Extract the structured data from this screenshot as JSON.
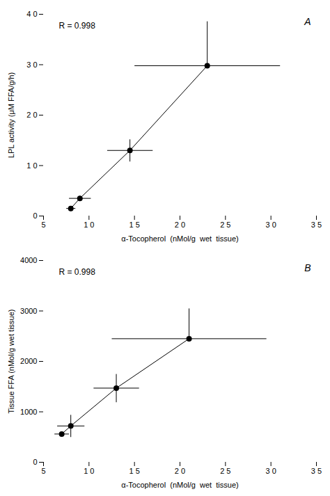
{
  "chart_data": [
    {
      "type": "line",
      "marker": "circle",
      "color": "#000000",
      "annotations": [
        "R = 0.998",
        "A"
      ],
      "x_label": "α-Tocopherol  (nMol/g  wet  tissue)",
      "y_label": "LPL activity (μM FFA/g/h)",
      "x": [
        8.0,
        9.0,
        14.5,
        23.0
      ],
      "values": [
        0.15,
        0.35,
        1.3,
        2.98
      ],
      "xerr": [
        0.5,
        1.2,
        2.5,
        8.0
      ],
      "yerr_lo": [
        0.05,
        0.05,
        0.22,
        0.0
      ],
      "yerr_hi": [
        0.05,
        0.05,
        0.22,
        0.88
      ],
      "xlim": [
        5,
        35
      ],
      "ylim": [
        0,
        4.0
      ],
      "xticks": [
        5,
        {
          "value": 10,
          "label": "1 0"
        },
        {
          "value": 15,
          "label": "1 5"
        },
        {
          "value": 20,
          "label": "2 0"
        },
        {
          "value": 25,
          "label": "2 5"
        },
        {
          "value": 30,
          "label": "3 0"
        },
        {
          "value": 35,
          "label": "3 5"
        }
      ],
      "yticks": [
        0,
        {
          "value": 1.0,
          "label": "1 0"
        },
        {
          "value": 2.0,
          "label": "2 0"
        },
        {
          "value": 3.0,
          "label": "3 0"
        },
        {
          "value": 4.0,
          "label": "4 0"
        }
      ]
    },
    {
      "type": "line",
      "marker": "circle",
      "color": "#000000",
      "annotations": [
        "R = 0.998",
        "B"
      ],
      "x_label": "α-Tocopherol  (nMol/g  wet  tissue)",
      "y_label": "Tissue FFA (nMol/g wet tissue)",
      "x": [
        7.0,
        8.0,
        13.0,
        21.0
      ],
      "values": [
        560,
        720,
        1470,
        2450
      ],
      "xerr": [
        0.8,
        1.5,
        2.5,
        8.5
      ],
      "yerr_lo": [
        0.0,
        220.0,
        280.0,
        0.0
      ],
      "yerr_hi": [
        0.0,
        220.0,
        280.0,
        600.0
      ],
      "xlim": [
        5,
        35
      ],
      "ylim": [
        0,
        4000
      ],
      "xticks": [
        5,
        {
          "value": 10,
          "label": "1 0"
        },
        {
          "value": 15,
          "label": "1 5"
        },
        {
          "value": 20,
          "label": "2 0"
        },
        {
          "value": 25,
          "label": "2 5"
        },
        {
          "value": 30,
          "label": "3 0"
        },
        {
          "value": 35,
          "label": "3 5"
        }
      ],
      "yticks": [
        0,
        1000,
        2000,
        3000,
        4000
      ]
    }
  ]
}
